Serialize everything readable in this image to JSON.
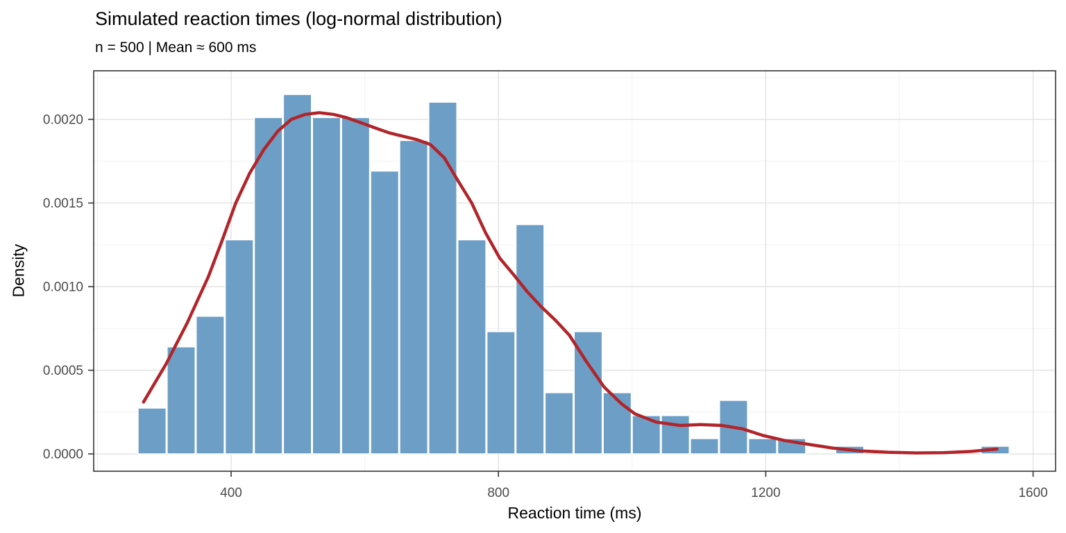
{
  "figure": {
    "title": "Simulated reaction times (log-normal distribution)",
    "subtitle": "n = 500 | Mean ≈ 600 ms"
  },
  "chart_data": {
    "type": "histogram",
    "title": "Simulated reaction times (log-normal distribution)",
    "subtitle": "n = 500 | Mean ≈ 600 ms",
    "xlabel": "Reaction time (ms)",
    "ylabel": "Density",
    "n": 500,
    "xlim": [
      194,
      1634
    ],
    "ylim": [
      0,
      0.00229
    ],
    "grid": "major+minor",
    "legend_position": "none",
    "x_ticks": {
      "major": [
        400,
        800,
        1200,
        1600
      ],
      "labels": [
        "400",
        "800",
        "1200",
        "1600"
      ],
      "minor": [
        200,
        600,
        1000,
        1400
      ]
    },
    "y_ticks": {
      "major": [
        0,
        0.0005,
        0.001,
        0.0015,
        0.002
      ],
      "labels": [
        "0.0000",
        "0.0005",
        "0.0010",
        "0.0015",
        "0.0020"
      ],
      "minor": [
        0.00025,
        0.00075,
        0.00125,
        0.00175,
        0.00225
      ]
    },
    "histogram": {
      "bin_width_ms": 43.5,
      "bin_edges_ms": [
        260,
        303.5,
        347,
        390.5,
        434,
        477.5,
        521,
        564.5,
        608,
        651.5,
        695,
        738.5,
        782,
        825.5,
        869,
        912.5,
        956,
        999.5,
        1043,
        1086.5,
        1130,
        1173.5,
        1217,
        1260.5,
        1304,
        1347.5,
        1391,
        1434.5,
        1478,
        1521.5,
        1565
      ],
      "counts": [
        6,
        14,
        18,
        28,
        44,
        47,
        44,
        44,
        37,
        41,
        46,
        28,
        16,
        30,
        8,
        16,
        8,
        5,
        5,
        2,
        7,
        2,
        2,
        0,
        1,
        0,
        0,
        0,
        0,
        1
      ],
      "densities": [
        0.000274,
        0.00064,
        0.000823,
        0.00128,
        0.002011,
        0.002149,
        0.002011,
        0.002011,
        0.001691,
        0.001874,
        0.002103,
        0.00128,
        0.000731,
        0.001371,
        0.000366,
        0.000731,
        0.000366,
        0.000229,
        0.000229,
        9.14e-05,
        0.00032,
        9.14e-05,
        9.14e-05,
        0,
        4.57e-05,
        0,
        0,
        0,
        0,
        4.57e-05
      ]
    },
    "density_curve": {
      "x_ms": [
        269,
        303,
        334,
        366,
        386,
        407,
        428,
        449,
        470,
        490,
        511,
        532,
        553,
        573,
        594,
        615,
        636,
        656,
        677,
        698,
        719,
        740,
        760,
        781,
        802,
        823,
        843,
        864,
        885,
        906,
        932,
        958,
        984,
        1004,
        1036,
        1072,
        1103,
        1134,
        1165,
        1196,
        1228,
        1259,
        1300,
        1342,
        1383,
        1425,
        1466,
        1508,
        1534,
        1546
      ],
      "density": [
        0.00031,
        0.00054,
        0.00078,
        0.00106,
        0.00127,
        0.0015,
        0.00168,
        0.00182,
        0.00193,
        0.002,
        0.00203,
        0.00204,
        0.00203,
        0.00201,
        0.00198,
        0.00195,
        0.00192,
        0.0019,
        0.00188,
        0.00185,
        0.00177,
        0.00163,
        0.0015,
        0.00132,
        0.00117,
        0.00107,
        0.00097,
        0.00088,
        0.0008,
        0.00071,
        0.00055,
        0.0004,
        0.0003,
        0.00024,
        0.00019,
        0.00017,
        0.000175,
        0.00017,
        0.00015,
        0.00011,
        8e-05,
        6e-05,
        3.5e-05,
        1.8e-05,
        1e-05,
        6e-06,
        7e-06,
        1.5e-05,
        2.5e-05,
        2.9e-05
      ]
    },
    "colors": {
      "bar_fill": "#6D9EC6",
      "bar_border": "#FFFFFF",
      "curve": "#B1252A",
      "grid_major": "#E4E4E4",
      "grid_minor": "#F2F2F2",
      "panel_border": "#333333",
      "tick_mark": "#333333",
      "tick_label": "#4A4A4A",
      "text": "#000000",
      "background": "#FFFFFF"
    }
  }
}
